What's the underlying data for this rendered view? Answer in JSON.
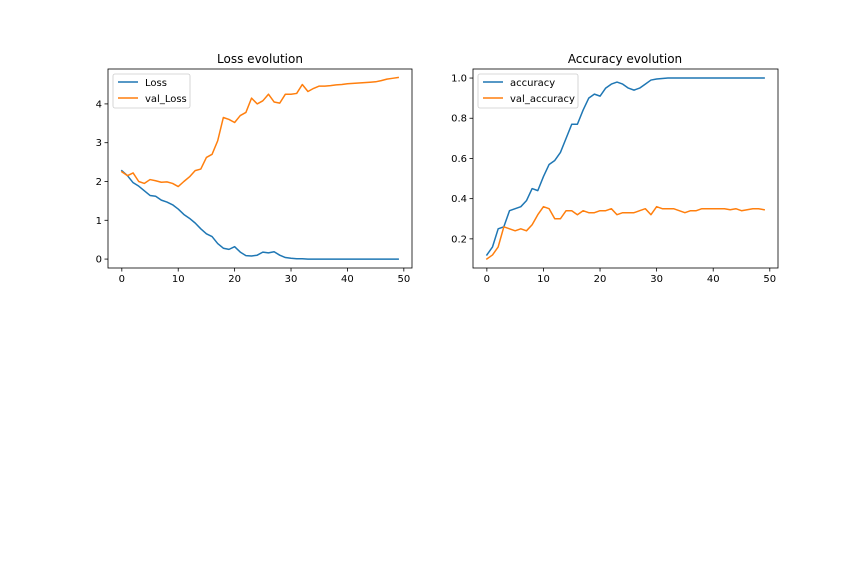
{
  "chart_data": [
    {
      "type": "line",
      "title": "Loss evolution",
      "xlabel": "",
      "ylabel": "",
      "xlim": [
        -2.45,
        51.45
      ],
      "ylim": [
        -0.23,
        4.9
      ],
      "xticks": [
        0,
        10,
        20,
        30,
        40,
        50
      ],
      "yticks": [
        0,
        1,
        2,
        3,
        4
      ],
      "ytick_labels": [
        "0",
        "1",
        "2",
        "3",
        "4"
      ],
      "grid": false,
      "legend_position": "upper left",
      "x": [
        0,
        1,
        2,
        3,
        4,
        5,
        6,
        7,
        8,
        9,
        10,
        11,
        12,
        13,
        14,
        15,
        16,
        17,
        18,
        19,
        20,
        21,
        22,
        23,
        24,
        25,
        26,
        27,
        28,
        29,
        30,
        31,
        32,
        33,
        34,
        35,
        36,
        37,
        38,
        39,
        40,
        41,
        42,
        43,
        44,
        45,
        46,
        47,
        48,
        49
      ],
      "series": [
        {
          "name": "Loss",
          "color": "#1f77b4",
          "values": [
            2.28,
            2.15,
            1.97,
            1.88,
            1.76,
            1.64,
            1.62,
            1.52,
            1.47,
            1.4,
            1.29,
            1.15,
            1.05,
            0.93,
            0.78,
            0.65,
            0.58,
            0.4,
            0.28,
            0.25,
            0.32,
            0.18,
            0.09,
            0.08,
            0.1,
            0.18,
            0.16,
            0.19,
            0.1,
            0.04,
            0.02,
            0.01,
            0.01,
            0.0,
            0.0,
            0.0,
            0.0,
            0.0,
            0.0,
            0.0,
            0.0,
            0.0,
            0.0,
            0.0,
            0.0,
            0.0,
            0.0,
            0.0,
            0.0,
            0.0
          ]
        },
        {
          "name": "val_Loss",
          "color": "#ff7f0e",
          "values": [
            2.25,
            2.15,
            2.22,
            2.0,
            1.95,
            2.05,
            2.02,
            1.98,
            1.99,
            1.95,
            1.87,
            2.0,
            2.12,
            2.28,
            2.32,
            2.62,
            2.7,
            3.05,
            3.65,
            3.6,
            3.52,
            3.7,
            3.78,
            4.15,
            4.0,
            4.08,
            4.25,
            4.05,
            4.02,
            4.25,
            4.25,
            4.27,
            4.5,
            4.32,
            4.4,
            4.46,
            4.46,
            4.47,
            4.49,
            4.5,
            4.52,
            4.53,
            4.54,
            4.55,
            4.56,
            4.57,
            4.6,
            4.64,
            4.66,
            4.68
          ]
        }
      ]
    },
    {
      "type": "line",
      "title": "Accuracy evolution",
      "xlabel": "",
      "ylabel": "",
      "xlim": [
        -2.45,
        51.45
      ],
      "ylim": [
        0.055,
        1.045
      ],
      "xticks": [
        0,
        10,
        20,
        30,
        40,
        50
      ],
      "yticks": [
        0.2,
        0.4,
        0.6,
        0.8,
        1.0
      ],
      "ytick_labels": [
        "0.2",
        "0.4",
        "0.6",
        "0.8",
        "1.0"
      ],
      "grid": false,
      "legend_position": "upper left",
      "x": [
        0,
        1,
        2,
        3,
        4,
        5,
        6,
        7,
        8,
        9,
        10,
        11,
        12,
        13,
        14,
        15,
        16,
        17,
        18,
        19,
        20,
        21,
        22,
        23,
        24,
        25,
        26,
        27,
        28,
        29,
        30,
        31,
        32,
        33,
        34,
        35,
        36,
        37,
        38,
        39,
        40,
        41,
        42,
        43,
        44,
        45,
        46,
        47,
        48,
        49
      ],
      "series": [
        {
          "name": "accuracy",
          "color": "#1f77b4",
          "values": [
            0.12,
            0.16,
            0.25,
            0.26,
            0.34,
            0.35,
            0.36,
            0.39,
            0.45,
            0.44,
            0.51,
            0.57,
            0.59,
            0.63,
            0.7,
            0.77,
            0.77,
            0.84,
            0.9,
            0.92,
            0.91,
            0.95,
            0.97,
            0.98,
            0.97,
            0.95,
            0.94,
            0.95,
            0.97,
            0.99,
            0.995,
            0.998,
            1.0,
            1.0,
            1.0,
            1.0,
            1.0,
            1.0,
            1.0,
            1.0,
            1.0,
            1.0,
            1.0,
            1.0,
            1.0,
            1.0,
            1.0,
            1.0,
            1.0,
            1.0
          ]
        },
        {
          "name": "val_accuracy",
          "color": "#ff7f0e",
          "values": [
            0.1,
            0.12,
            0.16,
            0.26,
            0.25,
            0.24,
            0.25,
            0.24,
            0.27,
            0.32,
            0.36,
            0.35,
            0.3,
            0.3,
            0.34,
            0.34,
            0.32,
            0.34,
            0.33,
            0.33,
            0.34,
            0.34,
            0.35,
            0.32,
            0.33,
            0.33,
            0.33,
            0.34,
            0.35,
            0.32,
            0.36,
            0.35,
            0.35,
            0.35,
            0.34,
            0.33,
            0.34,
            0.34,
            0.35,
            0.35,
            0.35,
            0.35,
            0.35,
            0.345,
            0.35,
            0.34,
            0.345,
            0.35,
            0.35,
            0.345
          ]
        }
      ]
    }
  ]
}
